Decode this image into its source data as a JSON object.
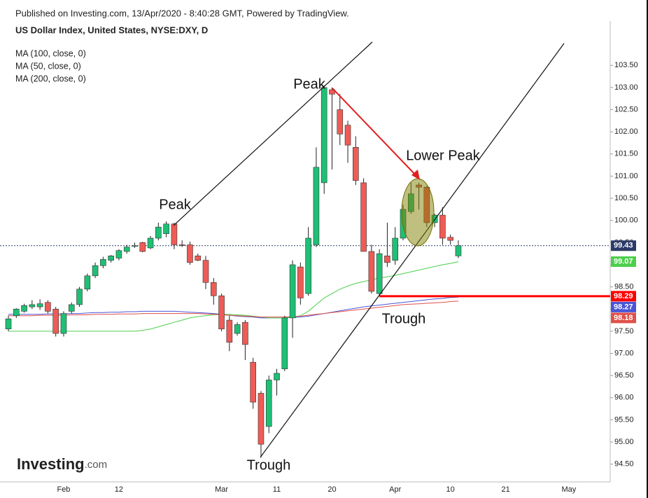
{
  "header": {
    "published": "Published on Investing.com, 13/Apr/2020 - 8:40:28 GMT, Powered by TradingView.",
    "symbol": "US Dollar Index, United States, NYSE:DXY, D"
  },
  "logo": {
    "main": "Investing",
    "suffix": ".com"
  },
  "annotations": {
    "peak_1": "Peak",
    "peak_2": "Peak",
    "lower_peak": "Lower Peak",
    "trough_1": "Trough",
    "trough_2": "Trough"
  },
  "chart_data": {
    "type": "candlestick",
    "categories": [
      null,
      null,
      null,
      null,
      null,
      null,
      null,
      "Feb",
      null,
      null,
      null,
      null,
      null,
      null,
      "12",
      null,
      null,
      null,
      null,
      null,
      null,
      null,
      null,
      null,
      null,
      null,
      null,
      "Mar",
      null,
      null,
      null,
      null,
      null,
      null,
      "11",
      null,
      null,
      null,
      null,
      null,
      null,
      "20",
      null,
      null,
      null,
      null,
      null,
      null,
      null,
      "Apr",
      null,
      null,
      null,
      null,
      null,
      null,
      "10",
      null,
      null,
      null,
      null,
      null,
      null,
      "21",
      null,
      null,
      null,
      null,
      null,
      null,
      null,
      "May",
      null,
      null,
      null,
      null
    ],
    "open": [
      97.55,
      97.85,
      97.95,
      98.05,
      98.05,
      98.15,
      98.0,
      97.45,
      97.95,
      98.1,
      98.45,
      98.75,
      98.98,
      99.1,
      99.15,
      99.3,
      99.42,
      99.5,
      99.38,
      99.6,
      99.7,
      99.92,
      99.45,
      99.45,
      99.2,
      99.1,
      98.6,
      98.3,
      97.75,
      97.45,
      97.7,
      96.8,
      96.1,
      95.35,
      96.4,
      96.65,
      97.8,
      98.95,
      98.35,
      99.45,
      100.85,
      102.95,
      102.5,
      102.15,
      101.65,
      100.85,
      99.3,
      98.35,
      99.2,
      99.1,
      99.6,
      100.2,
      100.8,
      100.75,
      99.95,
      100.12,
      99.62,
      99.2,
      null,
      null,
      null,
      null,
      null,
      null,
      null,
      null,
      null,
      null,
      null,
      null,
      null,
      null,
      null,
      null,
      null,
      null
    ],
    "high": [
      97.85,
      98.02,
      98.12,
      98.2,
      98.22,
      98.2,
      98.05,
      97.95,
      98.15,
      98.5,
      98.8,
      99.05,
      99.18,
      99.22,
      99.35,
      99.45,
      99.5,
      99.52,
      99.65,
      99.95,
      99.98,
      99.95,
      99.55,
      99.52,
      99.25,
      99.2,
      98.7,
      98.35,
      97.85,
      97.7,
      97.75,
      96.9,
      96.15,
      96.5,
      96.65,
      97.85,
      99.1,
      99.05,
      99.85,
      101.65,
      103.05,
      103.0,
      102.85,
      102.25,
      101.9,
      100.95,
      99.45,
      99.35,
      99.95,
      99.85,
      100.35,
      100.85,
      100.85,
      100.78,
      100.15,
      100.3,
      99.68,
      99.55,
      null,
      null,
      null,
      null,
      null,
      null,
      null,
      null,
      null,
      null,
      null,
      null,
      null,
      null,
      null,
      null,
      null,
      null
    ],
    "low": [
      97.5,
      97.8,
      97.92,
      98.0,
      97.98,
      97.9,
      97.38,
      97.38,
      97.9,
      98.05,
      98.4,
      98.7,
      98.92,
      99.05,
      99.1,
      99.25,
      99.38,
      99.28,
      99.35,
      99.55,
      99.62,
      99.35,
      99.4,
      99.0,
      99.08,
      98.45,
      98.1,
      97.5,
      97.05,
      97.4,
      96.85,
      95.75,
      94.65,
      95.2,
      96.05,
      96.6,
      97.35,
      98.1,
      98.3,
      99.4,
      100.6,
      101.15,
      101.7,
      101.3,
      100.8,
      99.3,
      98.35,
      98.29,
      98.95,
      99.0,
      99.55,
      100.15,
      100.25,
      99.85,
      99.85,
      99.45,
      99.45,
      99.15,
      null,
      null,
      null,
      null,
      null,
      null,
      null,
      null,
      null,
      null,
      null,
      null,
      null,
      null,
      null,
      null,
      null,
      null
    ],
    "close": [
      97.78,
      98.0,
      98.08,
      98.1,
      98.12,
      97.95,
      97.45,
      97.9,
      98.1,
      98.45,
      98.75,
      98.98,
      99.12,
      99.2,
      99.32,
      99.4,
      99.43,
      99.3,
      99.6,
      99.85,
      99.92,
      99.45,
      99.44,
      99.05,
      99.1,
      98.6,
      98.3,
      97.55,
      97.25,
      97.65,
      97.2,
      95.9,
      94.95,
      96.4,
      96.55,
      97.8,
      99.0,
      98.25,
      99.6,
      101.2,
      103.0,
      102.85,
      101.95,
      101.7,
      100.9,
      99.3,
      98.4,
      99.25,
      99.05,
      99.6,
      100.25,
      100.6,
      100.75,
      99.95,
      100.12,
      99.6,
      99.55,
      99.43,
      null,
      null,
      null,
      null,
      null,
      null,
      null,
      null,
      null,
      null,
      null,
      null,
      null,
      null,
      null,
      null,
      null,
      null
    ],
    "up_color": "#1fbf75",
    "down_color": "#ef5b55",
    "last_price_color": "#2b3a67",
    "support_level": 98.29,
    "support_color": "#ff0000",
    "series": [
      {
        "name": "MA (100, close, 0)",
        "color": "#4a55d6",
        "values": [
          97.88,
          97.88,
          97.88,
          97.88,
          97.88,
          97.89,
          97.89,
          97.89,
          97.9,
          97.9,
          97.91,
          97.92,
          97.92,
          97.93,
          97.93,
          97.94,
          97.94,
          97.95,
          97.95,
          97.95,
          97.95,
          97.95,
          97.94,
          97.93,
          97.92,
          97.91,
          97.9,
          97.88,
          97.86,
          97.84,
          97.83,
          97.82,
          97.8,
          97.8,
          97.8,
          97.8,
          97.81,
          97.82,
          97.84,
          97.87,
          97.9,
          97.93,
          97.96,
          97.99,
          98.02,
          98.05,
          98.07,
          98.09,
          98.11,
          98.13,
          98.15,
          98.17,
          98.19,
          98.21,
          98.23,
          98.24,
          98.26,
          98.27,
          null,
          null,
          null,
          null,
          null,
          null,
          null,
          null,
          null,
          null,
          null,
          null,
          null,
          null,
          null,
          null,
          null,
          null
        ]
      },
      {
        "name": "MA (50, close, 0)",
        "color": "#4ccf4c",
        "values": [
          97.5,
          97.5,
          97.5,
          97.5,
          97.5,
          97.5,
          97.5,
          97.5,
          97.5,
          97.5,
          97.5,
          97.5,
          97.5,
          97.5,
          97.5,
          97.5,
          97.5,
          97.52,
          97.55,
          97.6,
          97.65,
          97.7,
          97.75,
          97.8,
          97.83,
          97.85,
          97.87,
          97.88,
          97.88,
          97.87,
          97.86,
          97.84,
          97.82,
          97.8,
          97.8,
          97.8,
          97.82,
          97.85,
          97.95,
          98.1,
          98.25,
          98.35,
          98.45,
          98.52,
          98.58,
          98.62,
          98.66,
          98.7,
          98.73,
          98.76,
          98.8,
          98.84,
          98.88,
          98.92,
          98.96,
          99.0,
          99.03,
          99.07,
          null,
          null,
          null,
          null,
          null,
          null,
          null,
          null,
          null,
          null,
          null,
          null,
          null,
          null,
          null,
          null,
          null,
          null
        ]
      },
      {
        "name": "MA (200, close, 0)",
        "color": "#e0504a",
        "values": [
          97.85,
          97.85,
          97.85,
          97.85,
          97.86,
          97.86,
          97.86,
          97.86,
          97.87,
          97.87,
          97.87,
          97.88,
          97.88,
          97.88,
          97.89,
          97.89,
          97.89,
          97.9,
          97.9,
          97.9,
          97.9,
          97.9,
          97.9,
          97.9,
          97.9,
          97.89,
          97.88,
          97.87,
          97.86,
          97.85,
          97.84,
          97.83,
          97.82,
          97.82,
          97.82,
          97.82,
          97.83,
          97.84,
          97.86,
          97.88,
          97.9,
          97.92,
          97.94,
          97.96,
          97.98,
          98.0,
          98.02,
          98.04,
          98.06,
          98.08,
          98.1,
          98.11,
          98.12,
          98.13,
          98.14,
          98.15,
          98.17,
          98.18,
          null,
          null,
          null,
          null,
          null,
          null,
          null,
          null,
          null,
          null,
          null,
          null,
          null,
          null,
          null,
          null,
          null,
          null
        ]
      }
    ],
    "ylim": [
      94.1,
      104.5
    ],
    "yticks": [
      {
        "value": 94.5,
        "label": "94.50"
      },
      {
        "value": 95,
        "label": "95.00"
      },
      {
        "value": 95.5,
        "label": "95.50"
      },
      {
        "value": 96,
        "label": "96.00"
      },
      {
        "value": 96.5,
        "label": "96.50"
      },
      {
        "value": 97,
        "label": "97.00"
      },
      {
        "value": 97.5,
        "label": "97.50"
      },
      {
        "value": 98,
        "label": "98.00"
      },
      {
        "value": 98.5,
        "label": "98.50"
      },
      {
        "value": 99,
        "label": "99.00"
      },
      {
        "value": 99.5,
        "label": "99.50"
      },
      {
        "value": 100,
        "label": "100.00"
      },
      {
        "value": 100.5,
        "label": "100.50"
      },
      {
        "value": 101,
        "label": "101.00"
      },
      {
        "value": 101.5,
        "label": "101.50"
      },
      {
        "value": 102,
        "label": "102.00"
      },
      {
        "value": 102.5,
        "label": "102.50"
      },
      {
        "value": 103,
        "label": "103.00"
      },
      {
        "value": 103.5,
        "label": "103.50"
      }
    ]
  }
}
